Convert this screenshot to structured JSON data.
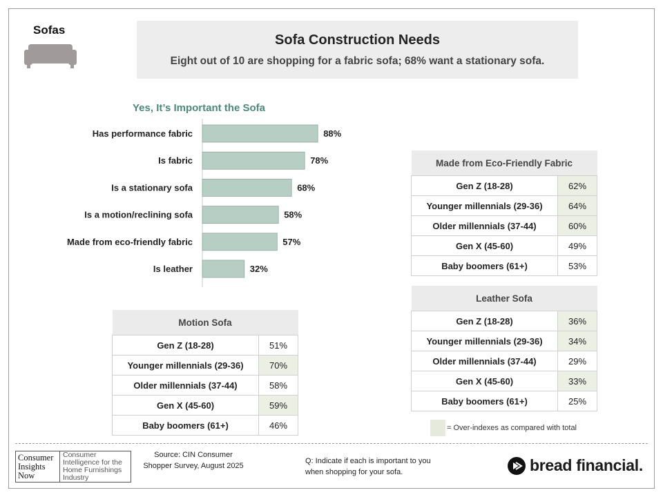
{
  "section_label": "Sofas",
  "header": {
    "title": "Sofa Construction Needs",
    "subtitle": "Eight out of 10 are shopping for a fabric sofa; 68% want a stationary sofa."
  },
  "chart_data": {
    "type": "bar",
    "orientation": "horizontal",
    "title": "Yes, It’s Important the Sofa",
    "categories": [
      "Has performance fabric",
      "Is fabric",
      "Is a stationary sofa",
      "Is a motion/reclining sofa",
      "Made from eco-friendly fabric",
      "Is leather"
    ],
    "values": [
      88,
      78,
      68,
      58,
      57,
      32
    ],
    "value_labels": [
      "88%",
      "78%",
      "68%",
      "58%",
      "57%",
      "32%"
    ],
    "xlim": [
      0,
      100
    ],
    "bar_color": "#b7cec5",
    "bar_border": "#8fa89c",
    "grid": false
  },
  "tables": {
    "motion": {
      "title": "Motion Sofa",
      "rows": [
        {
          "label": "Gen Z (18-28)",
          "value": "51%",
          "highlight": false
        },
        {
          "label": "Younger millennials (29-36)",
          "value": "70%",
          "highlight": true
        },
        {
          "label": "Older millennials (37-44)",
          "value": "58%",
          "highlight": false
        },
        {
          "label": "Gen X (45-60)",
          "value": "59%",
          "highlight": true
        },
        {
          "label": "Baby boomers (61+)",
          "value": "46%",
          "highlight": false
        }
      ]
    },
    "eco": {
      "title": "Made from Eco-Friendly Fabric",
      "rows": [
        {
          "label": "Gen Z (18-28)",
          "value": "62%",
          "highlight": true
        },
        {
          "label": "Younger millennials (29-36)",
          "value": "64%",
          "highlight": true
        },
        {
          "label": "Older millennials (37-44)",
          "value": "60%",
          "highlight": true
        },
        {
          "label": "Gen X (45-60)",
          "value": "49%",
          "highlight": false
        },
        {
          "label": "Baby boomers (61+)",
          "value": "53%",
          "highlight": false
        }
      ]
    },
    "leather": {
      "title": "Leather Sofa",
      "rows": [
        {
          "label": "Gen Z (18-28)",
          "value": "36%",
          "highlight": true
        },
        {
          "label": "Younger millennials (29-36)",
          "value": "34%",
          "highlight": true
        },
        {
          "label": "Older millennials (37-44)",
          "value": "29%",
          "highlight": false
        },
        {
          "label": "Gen X (45-60)",
          "value": "33%",
          "highlight": true
        },
        {
          "label": "Baby boomers (61+)",
          "value": "25%",
          "highlight": false
        }
      ]
    }
  },
  "legend": {
    "text": "= Over-indexes as compared with total",
    "swatch_color": "#e6eadc"
  },
  "footer": {
    "logo_left": [
      "Consumer",
      "Insights",
      "Now"
    ],
    "logo_right": "Consumer Intelligence for the Home Furnishings Industry",
    "source": "Source: CIN Consumer Shopper Survey, August 2025",
    "question": "Q: Indicate if each is important to you when shopping for your sofa.",
    "brand": "bread financial."
  },
  "colors": {
    "accent_green": "#4a8a78",
    "highlight": "#ebefe4"
  },
  "icons": {
    "sofa": "sofa-icon",
    "brand": "bread-logo-icon"
  }
}
